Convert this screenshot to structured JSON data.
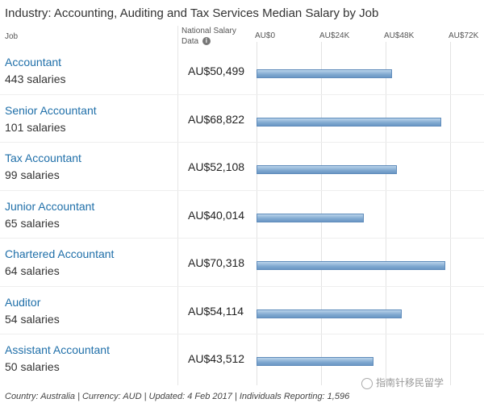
{
  "title": "Industry: Accounting, Auditing and Tax Services Median Salary by Job",
  "headers": {
    "job": "Job",
    "national_line1": "National Salary",
    "national_line2": "Data",
    "info_icon": "info-icon"
  },
  "footer": "Country: Australia | Currency: AUD | Updated: 4 Feb 2017 | Individuals Reporting: 1,596",
  "watermark": "指南针移民留学",
  "colors": {
    "bar": "#7fa8d0",
    "link": "#1f6fa9"
  },
  "chart_data": {
    "type": "bar",
    "orientation": "horizontal",
    "title": "Industry: Accounting, Auditing and Tax Services Median Salary by Job",
    "xlim": [
      0,
      72000
    ],
    "ticks": [
      {
        "value": 0,
        "label": "AU$0"
      },
      {
        "value": 24000,
        "label": "AU$24K"
      },
      {
        "value": 48000,
        "label": "AU$48K"
      },
      {
        "value": 72000,
        "label": "AU$72K"
      }
    ],
    "grid": true,
    "rows": [
      {
        "job": "Accountant",
        "count": "443 salaries",
        "salary_label": "AU$50,499",
        "value": 50499
      },
      {
        "job": "Senior Accountant",
        "count": "101 salaries",
        "salary_label": "AU$68,822",
        "value": 68822
      },
      {
        "job": "Tax Accountant",
        "count": "99 salaries",
        "salary_label": "AU$52,108",
        "value": 52108
      },
      {
        "job": "Junior Accountant",
        "count": "65 salaries",
        "salary_label": "AU$40,014",
        "value": 40014
      },
      {
        "job": "Chartered Accountant",
        "count": "64 salaries",
        "salary_label": "AU$70,318",
        "value": 70318
      },
      {
        "job": "Auditor",
        "count": "54 salaries",
        "salary_label": "AU$54,114",
        "value": 54114
      },
      {
        "job": "Assistant Accountant",
        "count": "50 salaries",
        "salary_label": "AU$43,512",
        "value": 43512
      }
    ]
  }
}
